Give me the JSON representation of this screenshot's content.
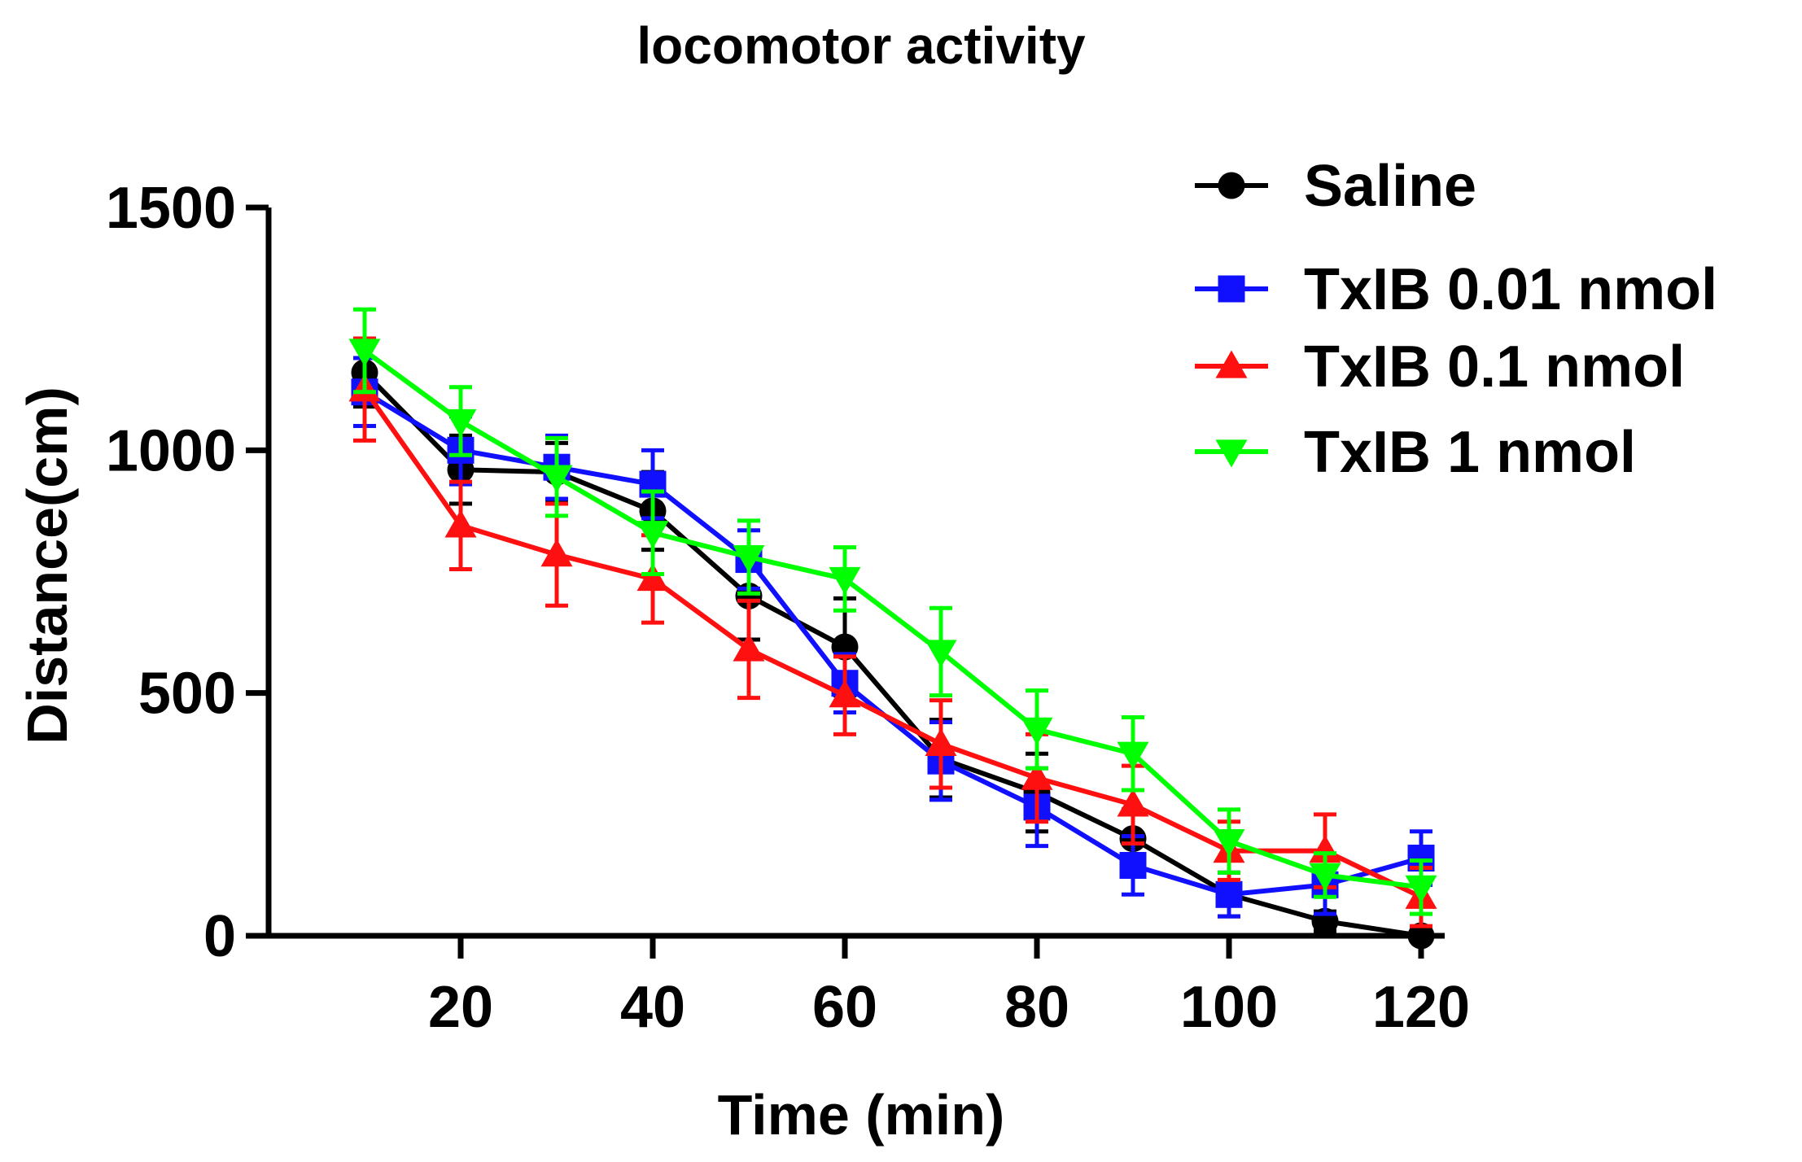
{
  "chart_data": {
    "type": "line",
    "title": "locomotor activity",
    "xlabel": "Time (min)",
    "ylabel": "Distance(cm)",
    "xlim": [
      0,
      125
    ],
    "ylim": [
      0,
      1500
    ],
    "xticks": [
      20,
      40,
      60,
      80,
      100,
      120
    ],
    "yticks": [
      0,
      500,
      1000,
      1500
    ],
    "legend_position": "top-right",
    "x": [
      10,
      20,
      30,
      40,
      50,
      60,
      70,
      80,
      90,
      100,
      110,
      120
    ],
    "series": [
      {
        "name": "Saline",
        "color": "#000000",
        "marker": "circle",
        "values": [
          1160,
          960,
          955,
          875,
          700,
          595,
          365,
          295,
          200,
          85,
          30,
          0
        ],
        "errors": [
          70,
          70,
          60,
          80,
          90,
          100,
          80,
          80,
          60,
          45,
          20,
          10
        ]
      },
      {
        "name": "TxIB 0.01 nmol",
        "color": "#1010ff",
        "marker": "square",
        "values": [
          1120,
          1000,
          965,
          930,
          775,
          520,
          360,
          265,
          145,
          85,
          105,
          160
        ],
        "errors": [
          70,
          70,
          65,
          70,
          60,
          60,
          80,
          80,
          60,
          45,
          60,
          55
        ]
      },
      {
        "name": "TxIB 0.1 nmol",
        "color": "#ff1010",
        "marker": "triangle-up",
        "values": [
          1125,
          845,
          785,
          735,
          590,
          495,
          395,
          325,
          270,
          175,
          175,
          80
        ],
        "errors": [
          105,
          90,
          105,
          90,
          100,
          80,
          90,
          90,
          80,
          60,
          75,
          60
        ]
      },
      {
        "name": "TxIB 1 nmol",
        "color": "#00ff00",
        "marker": "triangle-down",
        "values": [
          1205,
          1060,
          945,
          830,
          780,
          735,
          585,
          425,
          375,
          195,
          125,
          100
        ],
        "errors": [
          85,
          70,
          80,
          85,
          75,
          65,
          90,
          80,
          75,
          65,
          45,
          55
        ]
      }
    ]
  }
}
